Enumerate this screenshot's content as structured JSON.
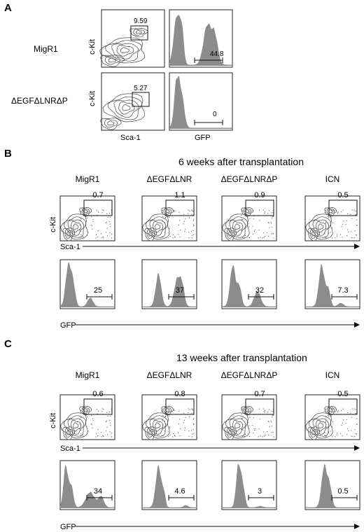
{
  "panel_a": {
    "letter": "A",
    "rows": [
      {
        "label": "MigR1",
        "gate_value": "9.59",
        "gfp_value": "44.8"
      },
      {
        "label": "ΔEGFΔLNRΔP",
        "gate_value": "5.27",
        "gfp_value": "0"
      }
    ],
    "y_axis_label": "c-Kit",
    "x_axis_label_contour": "Sca-1",
    "x_axis_label_hist": "GFP"
  },
  "panel_b": {
    "letter": "B",
    "title": "6 weeks after transplantation",
    "columns": [
      {
        "label": "MigR1",
        "gate_value": "0.7",
        "gfp_value": "25"
      },
      {
        "label": "ΔEGFΔLNR",
        "gate_value": "1.1",
        "gfp_value": "37"
      },
      {
        "label": "ΔEGFΔLNRΔP",
        "gate_value": "0.9",
        "gfp_value": "32"
      },
      {
        "label": "ICN",
        "gate_value": "0.5",
        "gfp_value": "7.3"
      }
    ],
    "y_axis_label": "c-Kit",
    "x_axis_label_contour": "Sca-1",
    "x_axis_label_hist": "GFP"
  },
  "panel_c": {
    "letter": "C",
    "title": "13 weeks after transplantation",
    "columns": [
      {
        "label": "MigR1",
        "gate_value": "0.6",
        "gfp_value": "34"
      },
      {
        "label": "ΔEGFΔLNR",
        "gate_value": "0.8",
        "gfp_value": "4.6"
      },
      {
        "label": "ΔEGFΔLNRΔP",
        "gate_value": "0.7",
        "gfp_value": "3"
      },
      {
        "label": "ICN",
        "gate_value": "0.5",
        "gfp_value": "0.5"
      }
    ],
    "y_axis_label": "c-Kit",
    "x_axis_label_contour": "Sca-1",
    "x_axis_label_hist": "GFP"
  },
  "colors": {
    "histogram_fill": "#8c8c8c",
    "contour": "#444444",
    "frame": "#222222"
  }
}
